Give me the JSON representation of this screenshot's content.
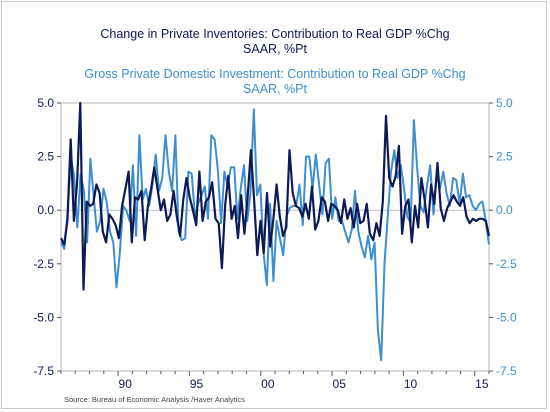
{
  "chart_data": {
    "type": "line",
    "title_lines": [
      "Change in Private Inventories: Contribution to Real GDP %Chg",
      "SAAR, %Pt"
    ],
    "subtitle_lines": [
      "Gross Private Domestic Investment: Contribution to Real GDP %Chg",
      "SAAR, %Pt"
    ],
    "xlim": [
      1986.0,
      2016.0
    ],
    "ylim": [
      -7.5,
      5.0
    ],
    "y_ticks": [
      5.0,
      2.5,
      0.0,
      -2.5,
      -5.0,
      -7.5
    ],
    "y_tick_labels_left": [
      "5.0",
      "2.5",
      "0.0",
      "-2.5",
      "-5.0",
      "-7.5"
    ],
    "y_tick_labels_right": [
      "5.0",
      "2.5",
      "0.0",
      "-2.5",
      "-5.0",
      "-7.5"
    ],
    "x_ticks": [
      1990,
      1995,
      2000,
      2005,
      2010,
      2015
    ],
    "x_tick_labels": [
      "90",
      "95",
      "00",
      "05",
      "10",
      "15"
    ],
    "grid": false,
    "colors": {
      "inventories": "#0d1a55",
      "investment": "#3f8fce"
    },
    "source": "Source:  Bureau of Economic Analysis /Haver Analytics",
    "series": [
      {
        "key": "investment",
        "values": [
          -1.5,
          -1.8,
          -0.2,
          2.5,
          1.6,
          -0.8,
          1.7,
          0.9,
          -1.5,
          2.4,
          0.6,
          -1.0,
          -0.5,
          1.0,
          0.4,
          -1.0,
          -1.5,
          -3.6,
          -2.0,
          0.2,
          0.0,
          -0.5,
          2.1,
          -1.2,
          3.5,
          0.5,
          1.0,
          0.2,
          1.2,
          2.6,
          0.9,
          1.5,
          3.5,
          1.8,
          0.9,
          3.5,
          -1.0,
          -1.4,
          -1.3,
          1.8,
          1.7,
          -0.3,
          0.3,
          0.7,
          1.1,
          -0.4,
          3.5,
          3.3,
          1.9,
          -0.6,
          1.8,
          1.1,
          2.0,
          2.0,
          -0.4,
          1.0,
          2.1,
          -0.5,
          0.8,
          4.7,
          0.7,
          1.2,
          -2.0,
          -3.5,
          0.3,
          -3.3,
          -0.5,
          -1.3,
          -2.1,
          -0.3,
          0.1,
          0.2,
          0.2,
          1.2,
          -0.7,
          2.5,
          2.5,
          1.0,
          2.6,
          1.2,
          -0.2,
          2.2,
          2.4,
          -0.4,
          0.6,
          -0.5,
          -0.5,
          -1.0,
          -1.5,
          -0.9,
          0.9,
          -1.0,
          -1.7,
          -2.2,
          -1.2,
          -2.3,
          -1.5,
          -5.6,
          -7.0,
          -2.5,
          -0.3,
          1.8,
          2.8,
          1.5,
          2.1,
          1.0,
          -0.3,
          -0.6,
          4.2,
          2.0,
          0.2,
          -0.1,
          1.1,
          2.1,
          -0.2,
          1.7,
          1.0,
          1.8,
          0.8,
          0.2,
          1.5,
          1.4,
          0.3,
          1.7,
          0.6,
          0.7,
          0.2,
          0.0,
          0.3,
          0.4,
          -0.5,
          -1.6
        ]
      },
      {
        "key": "inventories",
        "values": [
          -1.3,
          -1.6,
          -0.5,
          3.3,
          -0.5,
          1.3,
          5.0,
          -3.7,
          0.4,
          0.2,
          0.3,
          1.2,
          0.8,
          -1.0,
          -1.5,
          -0.2,
          -0.4,
          -0.7,
          -1.3,
          0.2,
          1.0,
          1.8,
          -1.5,
          0.6,
          0.5,
          0.9,
          -1.4,
          0.2,
          1.0,
          2.0,
          1.0,
          0.0,
          0.5,
          -0.5,
          -0.2,
          0.9,
          -0.3,
          -1.2,
          0.5,
          1.5,
          0.6,
          0.0,
          -0.7,
          1.8,
          -0.5,
          0.4,
          0.6,
          1.3,
          -0.4,
          -0.6,
          -2.7,
          0.2,
          1.6,
          -0.4,
          0.2,
          -1.3,
          0.7,
          -1.1,
          0.6,
          2.8,
          0.5,
          -2.1,
          -0.5,
          -2.0,
          0.8,
          -1.7,
          -0.4,
          1.2,
          -0.3,
          -1.2,
          -0.8,
          2.8,
          0.8,
          0.2,
          0.1,
          -0.3,
          0.3,
          -0.4,
          1.1,
          -0.9,
          -0.5,
          0.6,
          0.4,
          -0.5,
          0.3,
          0.2,
          0.0,
          -0.6,
          0.5,
          -0.4,
          0.1,
          -0.8,
          0.3,
          -0.6,
          -0.5,
          0.3,
          -1.1,
          -1.4,
          -0.6,
          -1.2,
          0.4,
          4.4,
          1.5,
          1.1,
          1.6,
          3.0,
          -1.1,
          0.2,
          0.5,
          -1.5,
          0.2,
          -0.8,
          1.5,
          0.5,
          -0.8,
          1.2,
          0.3,
          2.2,
          0.1,
          -0.5,
          0.1,
          0.4,
          0.7,
          0.4,
          0.2,
          0.6,
          -0.3,
          -0.6,
          -0.4,
          -0.5,
          -0.4,
          -0.4,
          -0.5,
          -1.2
        ]
      }
    ]
  }
}
